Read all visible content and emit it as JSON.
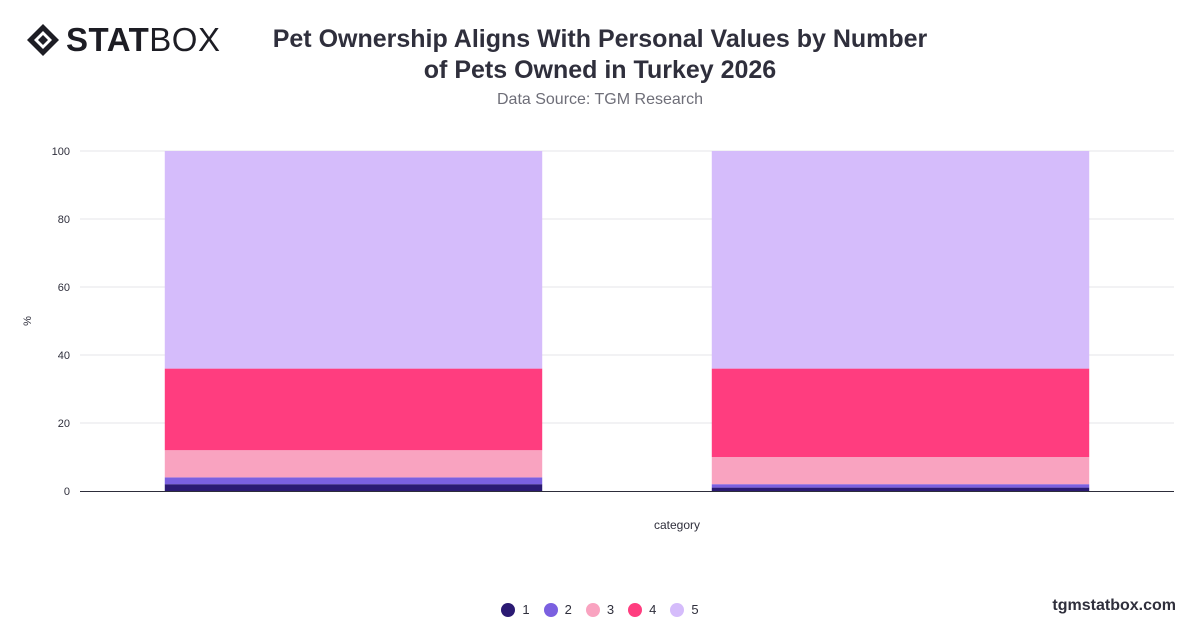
{
  "brand": {
    "bold": "STAT",
    "light": "BOX"
  },
  "title_line1": "Pet Ownership Aligns With Personal Values by Number",
  "title_line2": "of Pets Owned in Turkey 2026",
  "subtitle": "Data Source: TGM Research",
  "site": "tgmstatbox.com",
  "colors": {
    "axis": "#2d2d3a",
    "grid": "#e4e4e8",
    "text": "#2f2f3c"
  },
  "chart_data": {
    "type": "bar",
    "stacked": true,
    "categories": [
      "",
      ""
    ],
    "xlabel": "category",
    "ylabel": "%",
    "ylim": [
      0,
      100
    ],
    "yticks": [
      0,
      20,
      40,
      60,
      80,
      100
    ],
    "grid": true,
    "legend_position": "bottom",
    "series": [
      {
        "name": "1",
        "color": "#2b1a73",
        "values": [
          2,
          1
        ]
      },
      {
        "name": "2",
        "color": "#7b60e0",
        "values": [
          2,
          1
        ]
      },
      {
        "name": "3",
        "color": "#f9a3c0",
        "values": [
          8,
          8
        ]
      },
      {
        "name": "4",
        "color": "#ff3d7f",
        "values": [
          24,
          26
        ]
      },
      {
        "name": "5",
        "color": "#d5bcfb",
        "values": [
          64,
          64
        ]
      }
    ]
  }
}
